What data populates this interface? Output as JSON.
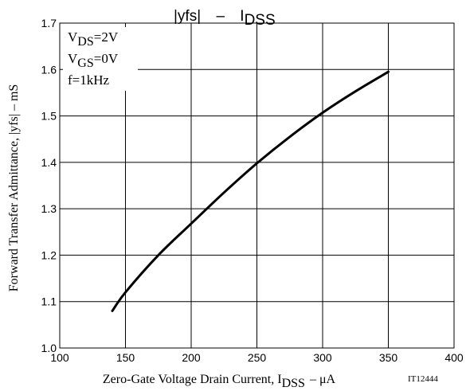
{
  "chart_data": {
    "type": "line",
    "title": {
      "lhs": "|yfs|",
      "dash": "–",
      "rhs_main": "I",
      "rhs_sub": "DSS"
    },
    "xlabel": {
      "main": "Zero-Gate Voltage Drain Current, I",
      "sub": "DSS",
      "unit": "–  μA"
    },
    "ylabel": "Forward Transfer Admittance, |yfs|  –  mS",
    "figure_id": "IT12444",
    "xlim": [
      100,
      400
    ],
    "ylim": [
      1.0,
      1.7
    ],
    "x_ticks": [
      "100",
      "150",
      "200",
      "250",
      "300",
      "350",
      "400"
    ],
    "y_ticks": [
      "1.0",
      "1.1",
      "1.2",
      "1.3",
      "1.4",
      "1.5",
      "1.6",
      "1.7"
    ],
    "grid": true,
    "conditions": [
      {
        "main": "V",
        "sub": "DS",
        "value": "=2V"
      },
      {
        "main": "V",
        "sub": "GS",
        "value": "=0V"
      },
      {
        "main": "f=1kHz",
        "sub": "",
        "value": ""
      }
    ],
    "series": [
      {
        "x": [
          140,
          150,
          175,
          200,
          225,
          250,
          275,
          300,
          325,
          350
        ],
        "y": [
          1.08,
          1.12,
          1.2,
          1.268,
          1.335,
          1.398,
          1.455,
          1.507,
          1.553,
          1.595
        ]
      }
    ]
  }
}
